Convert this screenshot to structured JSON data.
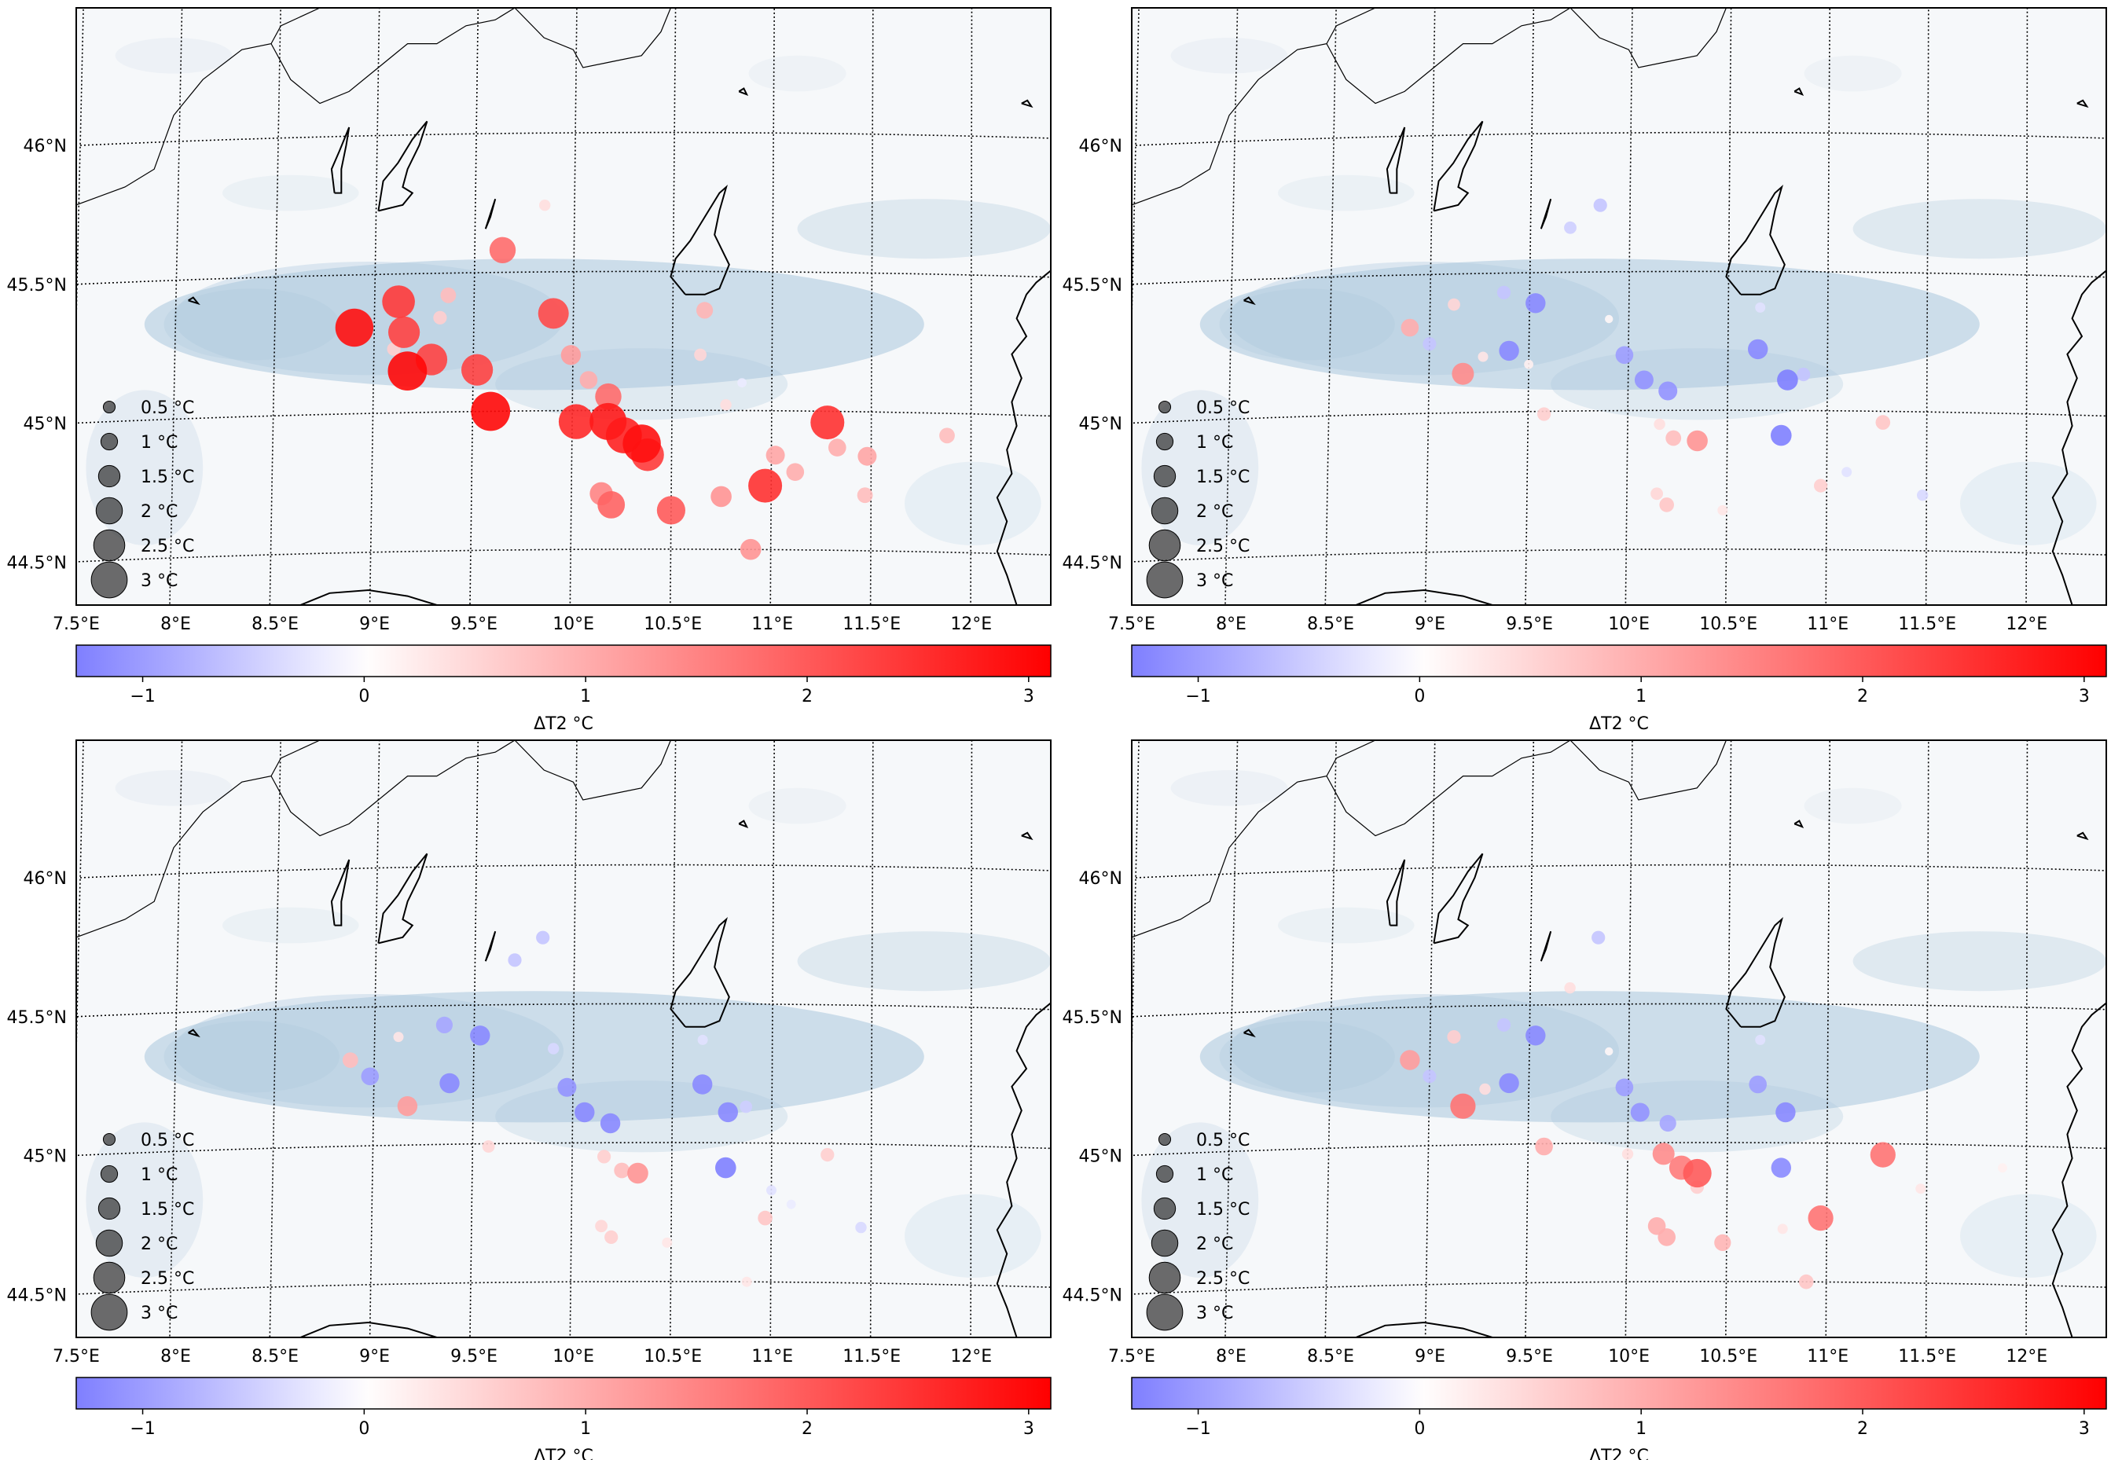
{
  "figure": {
    "lon_tick_labels": [
      "7.5°E",
      "8°E",
      "8.5°E",
      "9°E",
      "9.5°E",
      "10°E",
      "10.5°E",
      "11°E",
      "11.5°E",
      "12°E"
    ],
    "lat_tick_labels": [
      "44.5°N",
      "45°N",
      "45.5°N",
      "46°N"
    ],
    "colorbar": {
      "tick_labels": [
        "−1",
        "0",
        "1",
        "2",
        "3"
      ],
      "label": "ΔT2 °C"
    },
    "size_legend": {
      "labels": [
        "0.5 °C",
        "1 °C",
        "1.5 °C",
        "2 °C",
        "2.5 °C",
        "3 °C"
      ]
    },
    "colors": {
      "cold": "#7f7fff",
      "neutral": "#ffffff",
      "warm": "#ff0000",
      "background_field": "#a9c6dc",
      "marker_edge": "#000000"
    }
  },
  "chart_data": [
    {
      "type": "scatter",
      "panel": "top-left",
      "map_extent": {
        "lon": [
          7.5,
          12.4
        ],
        "lat": [
          44.3,
          46.45
        ]
      },
      "colorbar": {
        "min": -1.3,
        "max": 3.1,
        "label": "ΔT2 °C"
      },
      "points": [
        {
          "lon": 8.9,
          "lat": 45.31,
          "value": 2.9
        },
        {
          "lon": 9.12,
          "lat": 45.4,
          "value": 2.4
        },
        {
          "lon": 9.15,
          "lat": 45.29,
          "value": 2.3
        },
        {
          "lon": 9.17,
          "lat": 45.15,
          "value": 3.0
        },
        {
          "lon": 9.29,
          "lat": 45.19,
          "value": 2.3
        },
        {
          "lon": 9.52,
          "lat": 45.15,
          "value": 2.3
        },
        {
          "lon": 9.59,
          "lat": 45.0,
          "value": 3.0
        },
        {
          "lon": 9.64,
          "lat": 45.58,
          "value": 1.8
        },
        {
          "lon": 9.9,
          "lat": 45.35,
          "value": 2.2
        },
        {
          "lon": 9.99,
          "lat": 45.2,
          "value": 1.2
        },
        {
          "lon": 10.02,
          "lat": 44.96,
          "value": 2.6
        },
        {
          "lon": 10.18,
          "lat": 44.96,
          "value": 2.8
        },
        {
          "lon": 10.26,
          "lat": 44.91,
          "value": 2.7
        },
        {
          "lon": 10.35,
          "lat": 44.88,
          "value": 2.9
        },
        {
          "lon": 10.38,
          "lat": 44.84,
          "value": 2.4
        },
        {
          "lon": 10.18,
          "lat": 45.05,
          "value": 1.8
        },
        {
          "lon": 10.15,
          "lat": 44.7,
          "value": 1.5
        },
        {
          "lon": 10.2,
          "lat": 44.66,
          "value": 1.9
        },
        {
          "lon": 10.5,
          "lat": 44.64,
          "value": 2.0
        },
        {
          "lon": 10.66,
          "lat": 45.36,
          "value": 0.9
        },
        {
          "lon": 10.64,
          "lat": 45.2,
          "value": 0.5
        },
        {
          "lon": 10.75,
          "lat": 44.69,
          "value": 1.3
        },
        {
          "lon": 10.9,
          "lat": 44.5,
          "value": 1.3
        },
        {
          "lon": 10.97,
          "lat": 44.73,
          "value": 2.5
        },
        {
          "lon": 11.02,
          "lat": 44.84,
          "value": 1.1
        },
        {
          "lon": 11.12,
          "lat": 44.78,
          "value": 1.0
        },
        {
          "lon": 11.28,
          "lat": 44.96,
          "value": 2.5
        },
        {
          "lon": 11.33,
          "lat": 44.87,
          "value": 1.0
        },
        {
          "lon": 11.48,
          "lat": 44.84,
          "value": 1.1
        },
        {
          "lon": 11.47,
          "lat": 44.7,
          "value": 0.8
        },
        {
          "lon": 11.88,
          "lat": 44.92,
          "value": 0.8
        },
        {
          "lon": 9.37,
          "lat": 45.42,
          "value": 0.8
        },
        {
          "lon": 10.08,
          "lat": 45.11,
          "value": 1.0
        },
        {
          "lon": 9.33,
          "lat": 45.34,
          "value": 0.6
        },
        {
          "lon": 10.85,
          "lat": 45.1,
          "value": -0.2
        },
        {
          "lon": 9.85,
          "lat": 45.74,
          "value": 0.4
        },
        {
          "lon": 9.1,
          "lat": 45.23,
          "value": 0.6
        },
        {
          "lon": 10.77,
          "lat": 45.02,
          "value": 0.4
        }
      ]
    },
    {
      "type": "scatter",
      "panel": "top-right",
      "map_extent": {
        "lon": [
          7.5,
          12.4
        ],
        "lat": [
          44.3,
          46.45
        ]
      },
      "colorbar": {
        "min": -1.3,
        "max": 3.1,
        "label": "ΔT2 °C"
      },
      "points": [
        {
          "lon": 8.9,
          "lat": 45.31,
          "value": 1.0
        },
        {
          "lon": 9.0,
          "lat": 45.25,
          "value": -0.6
        },
        {
          "lon": 9.12,
          "lat": 45.39,
          "value": 0.5
        },
        {
          "lon": 9.17,
          "lat": 45.14,
          "value": 1.4
        },
        {
          "lon": 9.27,
          "lat": 45.2,
          "value": 0.3
        },
        {
          "lon": 9.37,
          "lat": 45.43,
          "value": -0.6
        },
        {
          "lon": 9.4,
          "lat": 45.22,
          "value": -1.2
        },
        {
          "lon": 9.53,
          "lat": 45.39,
          "value": -1.2
        },
        {
          "lon": 9.58,
          "lat": 44.99,
          "value": 0.6
        },
        {
          "lon": 9.7,
          "lat": 45.66,
          "value": -0.5
        },
        {
          "lon": 9.85,
          "lat": 45.74,
          "value": -0.6
        },
        {
          "lon": 9.9,
          "lat": 45.33,
          "value": 0.1
        },
        {
          "lon": 9.98,
          "lat": 45.2,
          "value": -1.0
        },
        {
          "lon": 10.08,
          "lat": 45.11,
          "value": -1.1
        },
        {
          "lon": 10.2,
          "lat": 45.07,
          "value": -1.1
        },
        {
          "lon": 10.16,
          "lat": 44.95,
          "value": 0.4
        },
        {
          "lon": 10.23,
          "lat": 44.9,
          "value": 0.8
        },
        {
          "lon": 10.35,
          "lat": 44.89,
          "value": 1.3
        },
        {
          "lon": 10.15,
          "lat": 44.7,
          "value": 0.5
        },
        {
          "lon": 10.2,
          "lat": 44.66,
          "value": 0.7
        },
        {
          "lon": 10.66,
          "lat": 45.37,
          "value": -0.3
        },
        {
          "lon": 10.65,
          "lat": 45.22,
          "value": -1.2
        },
        {
          "lon": 10.8,
          "lat": 45.11,
          "value": -1.3
        },
        {
          "lon": 10.88,
          "lat": 45.13,
          "value": -0.6
        },
        {
          "lon": 10.77,
          "lat": 44.91,
          "value": -1.3
        },
        {
          "lon": 10.97,
          "lat": 44.73,
          "value": 0.6
        },
        {
          "lon": 11.1,
          "lat": 44.78,
          "value": -0.3
        },
        {
          "lon": 11.28,
          "lat": 44.96,
          "value": 0.7
        },
        {
          "lon": 11.48,
          "lat": 44.7,
          "value": -0.4
        },
        {
          "lon": 10.48,
          "lat": 44.64,
          "value": 0.3
        },
        {
          "lon": 9.5,
          "lat": 45.17,
          "value": 0.2
        }
      ]
    },
    {
      "type": "scatter",
      "panel": "bottom-left",
      "map_extent": {
        "lon": [
          7.5,
          12.4
        ],
        "lat": [
          44.3,
          46.45
        ]
      },
      "colorbar": {
        "min": -1.3,
        "max": 3.1,
        "label": "ΔT2 °C"
      },
      "points": [
        {
          "lon": 8.88,
          "lat": 45.31,
          "value": 0.8
        },
        {
          "lon": 8.98,
          "lat": 45.25,
          "value": -1.0
        },
        {
          "lon": 9.12,
          "lat": 45.39,
          "value": 0.3
        },
        {
          "lon": 9.17,
          "lat": 45.14,
          "value": 1.2
        },
        {
          "lon": 9.35,
          "lat": 45.43,
          "value": -0.9
        },
        {
          "lon": 9.38,
          "lat": 45.22,
          "value": -1.2
        },
        {
          "lon": 9.53,
          "lat": 45.39,
          "value": -1.2
        },
        {
          "lon": 9.58,
          "lat": 44.99,
          "value": 0.5
        },
        {
          "lon": 9.7,
          "lat": 45.66,
          "value": -0.6
        },
        {
          "lon": 9.84,
          "lat": 45.74,
          "value": -0.6
        },
        {
          "lon": 9.9,
          "lat": 45.34,
          "value": -0.4
        },
        {
          "lon": 9.97,
          "lat": 45.2,
          "value": -1.1
        },
        {
          "lon": 10.06,
          "lat": 45.11,
          "value": -1.2
        },
        {
          "lon": 10.19,
          "lat": 45.07,
          "value": -1.2
        },
        {
          "lon": 10.16,
          "lat": 44.95,
          "value": 0.6
        },
        {
          "lon": 10.25,
          "lat": 44.9,
          "value": 0.8
        },
        {
          "lon": 10.33,
          "lat": 44.89,
          "value": 1.3
        },
        {
          "lon": 10.15,
          "lat": 44.7,
          "value": 0.5
        },
        {
          "lon": 10.2,
          "lat": 44.66,
          "value": 0.6
        },
        {
          "lon": 10.65,
          "lat": 45.37,
          "value": -0.3
        },
        {
          "lon": 10.65,
          "lat": 45.21,
          "value": -1.2
        },
        {
          "lon": 10.78,
          "lat": 45.11,
          "value": -1.2
        },
        {
          "lon": 10.87,
          "lat": 45.13,
          "value": -0.5
        },
        {
          "lon": 10.77,
          "lat": 44.91,
          "value": -1.3
        },
        {
          "lon": 10.97,
          "lat": 44.73,
          "value": 0.7
        },
        {
          "lon": 11.0,
          "lat": 44.83,
          "value": -0.3
        },
        {
          "lon": 11.1,
          "lat": 44.78,
          "value": -0.2
        },
        {
          "lon": 11.28,
          "lat": 44.96,
          "value": 0.6
        },
        {
          "lon": 11.45,
          "lat": 44.7,
          "value": -0.4
        },
        {
          "lon": 10.48,
          "lat": 44.64,
          "value": 0.3
        },
        {
          "lon": 10.88,
          "lat": 44.5,
          "value": 0.3
        }
      ]
    },
    {
      "type": "scatter",
      "panel": "bottom-right",
      "map_extent": {
        "lon": [
          7.5,
          12.4
        ],
        "lat": [
          44.3,
          46.45
        ]
      },
      "colorbar": {
        "min": -1.3,
        "max": 3.1,
        "label": "ΔT2 °C"
      },
      "points": [
        {
          "lon": 8.9,
          "lat": 45.31,
          "value": 1.2
        },
        {
          "lon": 9.0,
          "lat": 45.25,
          "value": -0.6
        },
        {
          "lon": 9.12,
          "lat": 45.39,
          "value": 0.6
        },
        {
          "lon": 9.17,
          "lat": 45.14,
          "value": 1.7
        },
        {
          "lon": 9.28,
          "lat": 45.2,
          "value": 0.4
        },
        {
          "lon": 9.37,
          "lat": 45.43,
          "value": -0.6
        },
        {
          "lon": 9.4,
          "lat": 45.22,
          "value": -1.2
        },
        {
          "lon": 9.53,
          "lat": 45.39,
          "value": -1.2
        },
        {
          "lon": 9.58,
          "lat": 44.99,
          "value": 1.0
        },
        {
          "lon": 9.7,
          "lat": 45.56,
          "value": 0.4
        },
        {
          "lon": 9.84,
          "lat": 45.74,
          "value": -0.6
        },
        {
          "lon": 9.9,
          "lat": 45.33,
          "value": 0.1
        },
        {
          "lon": 9.98,
          "lat": 45.2,
          "value": -1.0
        },
        {
          "lon": 10.06,
          "lat": 45.11,
          "value": -1.1
        },
        {
          "lon": 10.2,
          "lat": 45.07,
          "value": -0.9
        },
        {
          "lon": 10.0,
          "lat": 44.96,
          "value": 0.4
        },
        {
          "lon": 10.18,
          "lat": 44.96,
          "value": 1.4
        },
        {
          "lon": 10.27,
          "lat": 44.91,
          "value": 1.6
        },
        {
          "lon": 10.35,
          "lat": 44.89,
          "value": 2.0
        },
        {
          "lon": 10.35,
          "lat": 44.84,
          "value": 0.6
        },
        {
          "lon": 10.15,
          "lat": 44.7,
          "value": 1.0
        },
        {
          "lon": 10.2,
          "lat": 44.66,
          "value": 1.0
        },
        {
          "lon": 10.48,
          "lat": 44.64,
          "value": 0.9
        },
        {
          "lon": 10.66,
          "lat": 45.37,
          "value": -0.3
        },
        {
          "lon": 10.65,
          "lat": 45.21,
          "value": -1.0
        },
        {
          "lon": 10.79,
          "lat": 45.11,
          "value": -1.2
        },
        {
          "lon": 10.77,
          "lat": 44.91,
          "value": -1.2
        },
        {
          "lon": 10.97,
          "lat": 44.73,
          "value": 1.7
        },
        {
          "lon": 10.78,
          "lat": 44.69,
          "value": 0.3
        },
        {
          "lon": 10.9,
          "lat": 44.5,
          "value": 0.7
        },
        {
          "lon": 11.28,
          "lat": 44.96,
          "value": 1.7
        },
        {
          "lon": 11.47,
          "lat": 44.84,
          "value": 0.3
        },
        {
          "lon": 11.88,
          "lat": 44.92,
          "value": 0.2
        }
      ]
    }
  ]
}
